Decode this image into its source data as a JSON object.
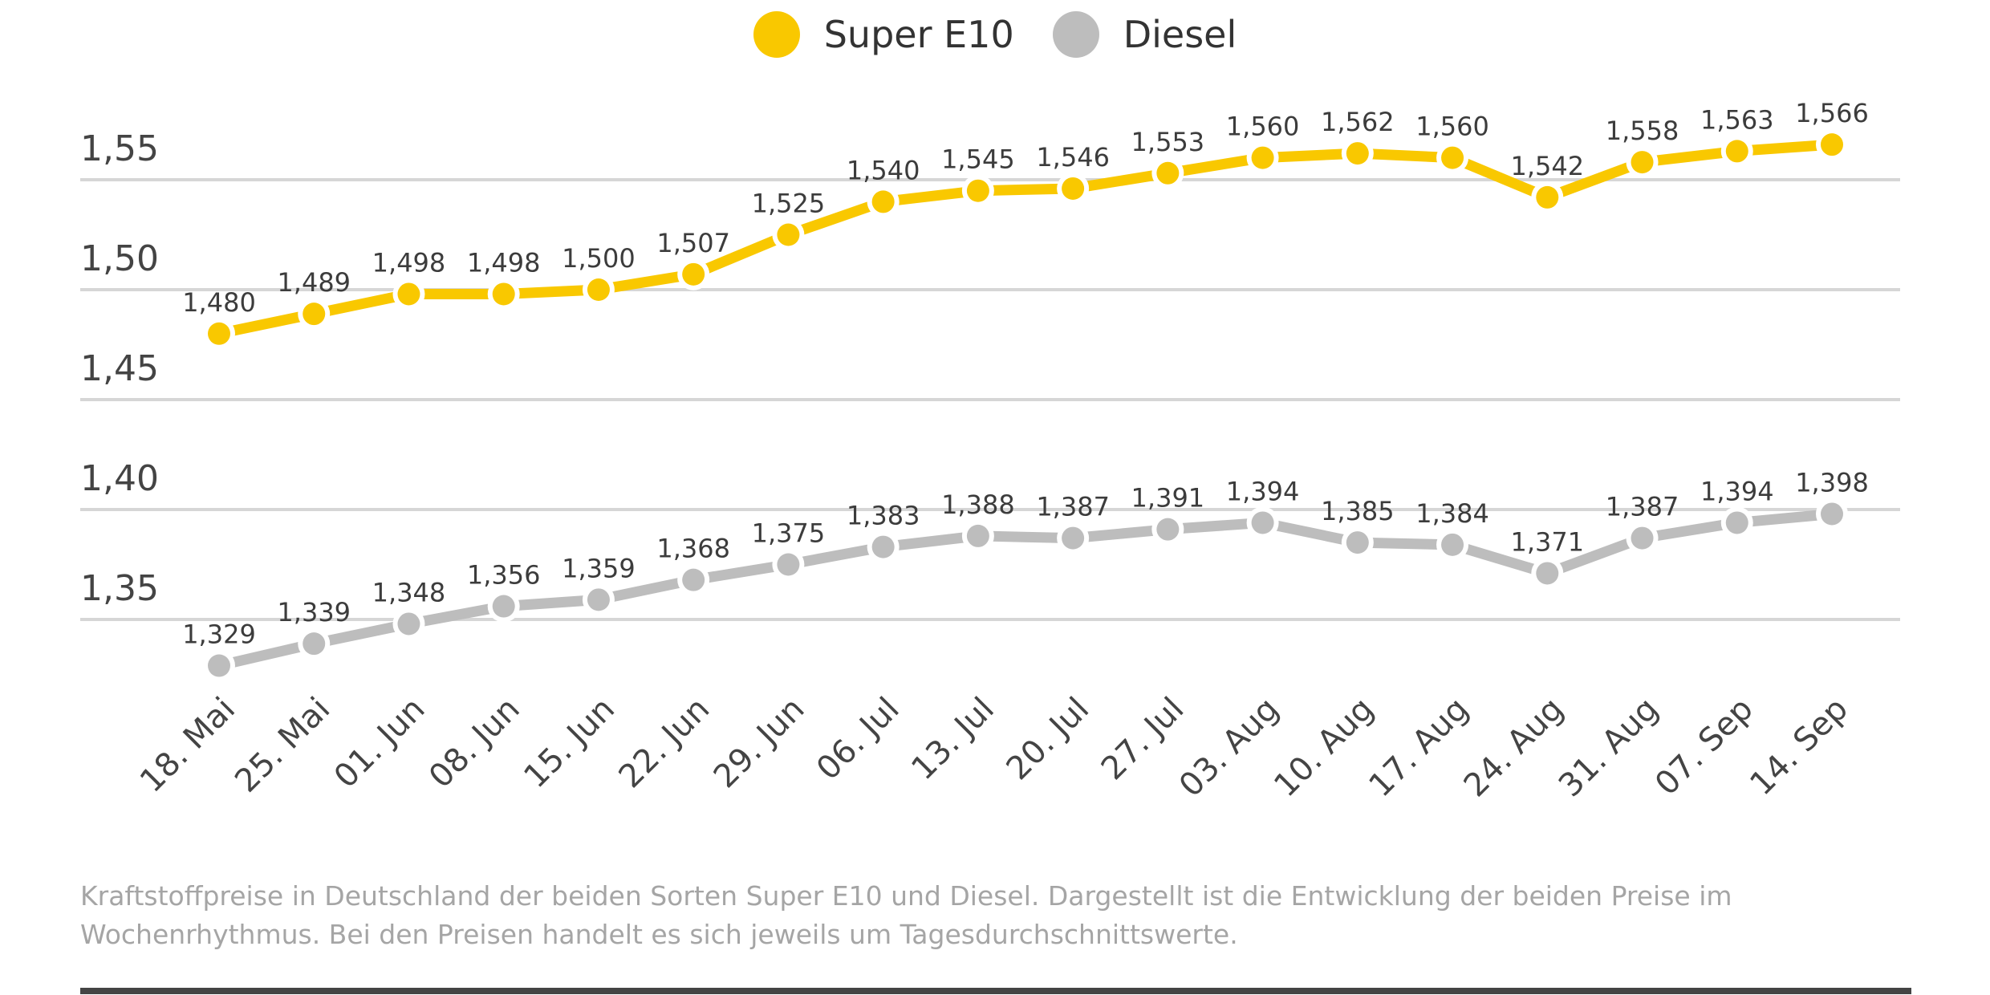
{
  "legend": [
    {
      "label": "Super E10",
      "color": "#f9c800"
    },
    {
      "label": "Diesel",
      "color": "#bdbdbd"
    }
  ],
  "caption": "Kraftstoffpreise in Deutschland der beiden Sorten Super E10 und Diesel. Dargestellt ist die Entwicklung der beiden Preise im Wochenrhythmus. Bei den Preisen handelt es sich jeweils um Tagesdurchschnittswerte.",
  "chart_data": {
    "type": "line",
    "title": "",
    "xlabel": "",
    "ylabel": "",
    "categories": [
      "18. Mai",
      "25. Mai",
      "01. Jun",
      "08. Jun",
      "15. Jun",
      "22. Jun",
      "29. Jun",
      "06. Jul",
      "13. Jul",
      "20. Jul",
      "27. Jul",
      "03. Aug",
      "10. Aug",
      "17. Aug",
      "24. Aug",
      "31. Aug",
      "07. Sep",
      "14. Sep"
    ],
    "series": [
      {
        "name": "Super E10",
        "color": "#f9c800",
        "values": [
          1.48,
          1.489,
          1.498,
          1.498,
          1.5,
          1.507,
          1.525,
          1.54,
          1.545,
          1.546,
          1.553,
          1.56,
          1.562,
          1.56,
          1.542,
          1.558,
          1.563,
          1.566
        ],
        "labels": [
          "1,480",
          "1,489",
          "1,498",
          "1,498",
          "1,500",
          "1,507",
          "1,525",
          "1,540",
          "1,545",
          "1,546",
          "1,553",
          "1,560",
          "1,562",
          "1,560",
          "1,542",
          "1,558",
          "1,563",
          "1,566"
        ]
      },
      {
        "name": "Diesel",
        "color": "#bdbdbd",
        "values": [
          1.329,
          1.339,
          1.348,
          1.356,
          1.359,
          1.368,
          1.375,
          1.383,
          1.388,
          1.387,
          1.391,
          1.394,
          1.385,
          1.384,
          1.371,
          1.387,
          1.394,
          1.398
        ],
        "labels": [
          "1,329",
          "1,339",
          "1,348",
          "1,356",
          "1,359",
          "1,368",
          "1,375",
          "1,383",
          "1,388",
          "1,387",
          "1,391",
          "1,394",
          "1,385",
          "1,384",
          "1,371",
          "1,387",
          "1,394",
          "1,398"
        ]
      }
    ],
    "yticks": [
      1.55,
      1.5,
      1.45,
      1.4,
      1.35
    ],
    "ytick_labels": [
      "1,55",
      "1,50",
      "1,45",
      "1,40",
      "1,35"
    ],
    "ylim": [
      1.35,
      1.55
    ],
    "grid": true,
    "legend_position": "top-center",
    "x_label_rotation": "-45deg"
  }
}
